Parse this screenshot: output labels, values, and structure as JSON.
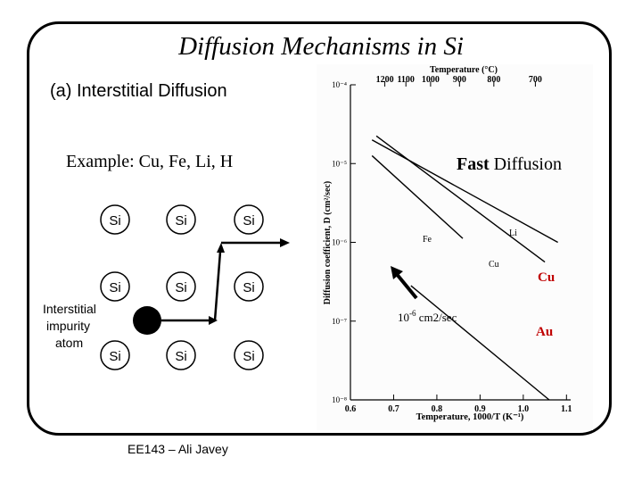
{
  "slide": {
    "title": "Diffusion Mechanisms in Si",
    "subtitle": "(a) Interstitial Diffusion",
    "example": "Example: Cu, Fe, Li, H",
    "footer": "EE143 – Ali Javey"
  },
  "lattice": {
    "atom_label": "Si",
    "impurity_label_lines": [
      "Interstitial",
      "impurity",
      "atom"
    ]
  },
  "chart_data": {
    "type": "line",
    "title": "",
    "top_axis_label": "Temperature (°C)",
    "top_ticks": [
      "1200",
      "1100",
      "1000",
      "900",
      "800",
      "700"
    ],
    "top_tick_positions": [
      0.6796,
      0.7284,
      0.7855,
      0.8524,
      0.9319,
      1.028
    ],
    "xlabel": "Temperature, 1000/T (K⁻¹)",
    "ylabel": "Diffusion coefficient, D (cm²/sec)",
    "xlim": [
      0.6,
      1.12
    ],
    "ylim": [
      -8,
      -4
    ],
    "y_log_scale": true,
    "x_ticks": [
      "0.6",
      "0.7",
      "0.8",
      "0.9",
      "1.0",
      "1.1"
    ],
    "x_tick_values": [
      0.6,
      0.7,
      0.8,
      0.9,
      1.0,
      1.1
    ],
    "y_ticks": [
      "10⁻⁴",
      "10⁻⁵",
      "10⁻⁶",
      "10⁻⁷",
      "10⁻⁸"
    ],
    "y_tick_values": [
      -4,
      -5,
      -6,
      -7,
      -8
    ],
    "series": [
      {
        "name": "Li",
        "x": [
          0.65,
          1.08
        ],
        "y": [
          -4.7,
          -6.0
        ]
      },
      {
        "name": "Fe",
        "x": [
          0.65,
          0.86
        ],
        "y": [
          -4.9,
          -5.95
        ]
      },
      {
        "name": "Cu",
        "x": [
          0.66,
          1.05
        ],
        "y": [
          -4.65,
          -6.25
        ]
      },
      {
        "name": "",
        "x": [
          0.74,
          1.06
        ],
        "y": [
          -6.55,
          -8.0
        ]
      }
    ],
    "annotations": {
      "fast_bold": "Fast",
      "fast_rest": " Diffusion",
      "cu": "Cu",
      "au": "Au",
      "coef_base": "10",
      "coef_exp": "-6",
      "coef_unit": " cm2/sec"
    },
    "colors": {
      "accent_red": "#c00000",
      "line": "#000000"
    }
  }
}
